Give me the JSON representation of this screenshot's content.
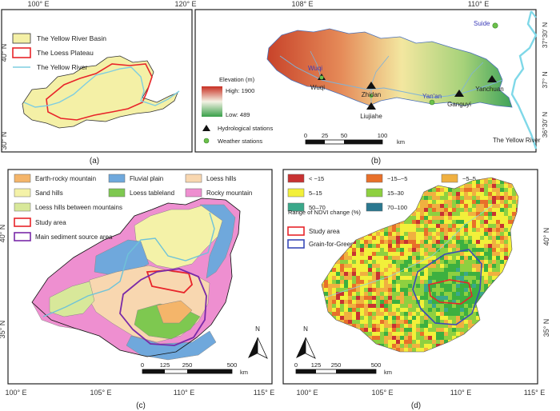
{
  "panels": {
    "a": {
      "caption": "(a)",
      "top_ticks": [
        "100° E",
        "120° E"
      ],
      "left_ticks": [
        "40° N",
        "30° N"
      ],
      "legend": [
        {
          "label": "The Yellow River Basin",
          "fill": "#f4f0a6",
          "stroke": "#333333"
        },
        {
          "label": "The Loess Plateau",
          "fill": "#ffffff",
          "stroke": "#e8242a"
        },
        {
          "label": "The Yellow River",
          "fill": "none",
          "stroke": "#7fcde0"
        }
      ]
    },
    "b": {
      "caption": "(b)",
      "top_ticks": [
        "108° E",
        "110° E"
      ],
      "right_ticks": [
        "37°30′ N",
        "37° N",
        "36°30′ N"
      ],
      "elevation_title": "Elevation (m)",
      "elevation_high": "High: 1900",
      "elevation_low": "Low: 489",
      "legend_hydro": "Hydrological stations",
      "legend_weather": "Weather stations",
      "scale_labels": [
        "0",
        "25",
        "50",
        "100"
      ],
      "scale_unit": "km",
      "river_label": "The Yellow River",
      "places": {
        "suide": "Suide",
        "wuqi_top": "Wuqi",
        "wuqi": "Wuqi",
        "zhidan": "Zhidan",
        "yanan": "Yan'an",
        "ganguyi": "Ganguyi",
        "yanchuan": "Yanchuan",
        "liujiahe": "Liujiahe"
      }
    },
    "c": {
      "caption": "(c)",
      "bottom_ticks": [
        "100° E",
        "105° E",
        "110° E",
        "115° E"
      ],
      "left_ticks": [
        "40° N",
        "35° N"
      ],
      "legend": [
        {
          "label": "Earth-rocky mountain",
          "color": "#f4b56a"
        },
        {
          "label": "Fluvial plain",
          "color": "#6fa8dc"
        },
        {
          "label": "Loess hills",
          "color": "#f8d7b0"
        },
        {
          "label": "Sand hills",
          "color": "#f4f2a8"
        },
        {
          "label": "Loess tableland",
          "color": "#7ec850"
        },
        {
          "label": "Rocky mountain",
          "color": "#ee8fd0"
        },
        {
          "label": "Loess hills between mountains",
          "color": "#d8e89a"
        }
      ],
      "legend_study": "Study area",
      "legend_source": "Main sediment source area",
      "scale_labels": [
        "0",
        "125",
        "250",
        "500"
      ],
      "scale_unit": "km",
      "north": "N"
    },
    "d": {
      "caption": "(d)",
      "bottom_ticks": [
        "100° E",
        "105° E",
        "110° E",
        "115° E"
      ],
      "right_ticks": [
        "40° N",
        "35° N"
      ],
      "ndvi_legend": [
        {
          "label": "< −15",
          "color": "#c83232"
        },
        {
          "label": "−15–−5",
          "color": "#e8702a"
        },
        {
          "label": "−5–5",
          "color": "#f0b040"
        },
        {
          "label": "5–15",
          "color": "#f2f03a"
        },
        {
          "label": "15–30",
          "color": "#8ed040"
        },
        {
          "label": "30–50",
          "color": "#3cb040"
        },
        {
          "label": "50–70",
          "color": "#3aa88a"
        },
        {
          "label": "70–100",
          "color": "#2a7890"
        },
        {
          "label": "> 100",
          "color": "#283088"
        }
      ],
      "range_title": "Range of NDVI change (%)",
      "legend_study": "Study area",
      "legend_green": "Grain-for-Green core area",
      "scale_labels": [
        "0",
        "125",
        "250",
        "500"
      ],
      "scale_unit": "km",
      "north": "N"
    }
  }
}
